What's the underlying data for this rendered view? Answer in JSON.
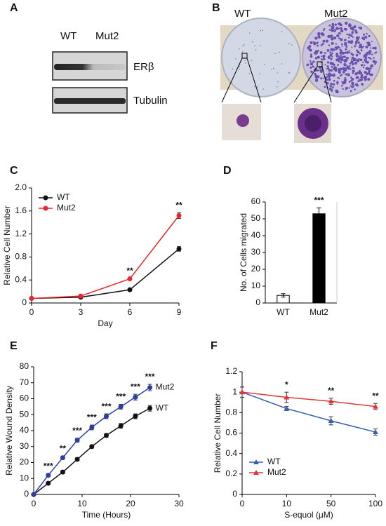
{
  "figure": {
    "panel_labels": [
      "A",
      "B",
      "C",
      "D",
      "E",
      "F"
    ],
    "blot": {
      "lanes": [
        "WT",
        "Mut2"
      ],
      "bands": [
        "ERβ",
        "Tubulin"
      ]
    },
    "plates": {
      "labels": [
        "WT",
        "Mut2"
      ]
    }
  },
  "chart_data": [
    {
      "type": "line",
      "xlabel": "Day",
      "ylabel": "Relative Cell Number",
      "x": [
        0,
        3,
        6,
        9
      ],
      "xlim": [
        0,
        9
      ],
      "xticks": [
        0,
        3,
        6,
        9
      ],
      "ylim": [
        0,
        2
      ],
      "yticks": [
        0,
        0.4,
        0.8,
        1.2,
        1.6,
        {
          "value": 2,
          "label": "2.0"
        }
      ],
      "marker": "circle",
      "legend": "upper left",
      "series": [
        {
          "name": "WT",
          "color": "#111111",
          "values": [
            0.08,
            0.1,
            0.23,
            0.94
          ],
          "errors": [
            0.01,
            0.01,
            0.01,
            0.04
          ]
        },
        {
          "name": "Mut2",
          "color": "#e8262b",
          "values": [
            0.08,
            0.12,
            0.42,
            1.52
          ],
          "errors": [
            0.01,
            0.01,
            0.01,
            0.05
          ]
        }
      ],
      "annotations": [
        {
          "x": 6,
          "text": "**"
        },
        {
          "x": 9,
          "text": "**"
        }
      ]
    },
    {
      "type": "bar",
      "ylabel": "No. of Cells migrated",
      "categories": [
        "WT",
        "Mut2"
      ],
      "values": [
        4.5,
        53
      ],
      "errors": [
        1,
        3.5
      ],
      "colors": [
        "#ffffff",
        "#000000"
      ],
      "ylim": [
        0,
        60
      ],
      "yticks": [
        0,
        10,
        20,
        30,
        40,
        50,
        60
      ],
      "annotations": [
        {
          "category": "Mut2",
          "text": "***"
        }
      ]
    },
    {
      "type": "line",
      "xlabel": "Time (Hours)",
      "ylabel": "Relative Wound Density",
      "x": [
        0,
        3,
        6,
        9,
        12,
        15,
        18,
        21,
        24
      ],
      "xlim": [
        0,
        30
      ],
      "xticks": [
        0,
        10,
        20,
        30
      ],
      "ylim": [
        0,
        80
      ],
      "yticks": [
        0,
        10,
        20,
        30,
        40,
        50,
        60,
        70,
        80
      ],
      "marker": "circle",
      "legend": "end labels",
      "series": [
        {
          "name": "WT",
          "color": "#111111",
          "values": [
            0,
            7,
            14,
            22,
            30,
            37,
            43,
            49,
            54
          ],
          "errors": [
            0.5,
            0.8,
            1,
            1,
            1,
            1.2,
            1.5,
            1.5,
            1.8
          ]
        },
        {
          "name": "Mut2",
          "color": "#2b3fa0",
          "values": [
            0,
            12,
            23,
            34,
            42,
            49,
            55,
            61,
            67
          ],
          "errors": [
            0.5,
            1,
            1,
            1.2,
            1.5,
            1.5,
            1.5,
            1.8,
            2
          ]
        }
      ],
      "annotations": [
        {
          "x": 3,
          "text": "***"
        },
        {
          "x": 6,
          "text": "**"
        },
        {
          "x": 9,
          "text": "***"
        },
        {
          "x": 12,
          "text": "***"
        },
        {
          "x": 15,
          "text": "***"
        },
        {
          "x": 18,
          "text": "***"
        },
        {
          "x": 21,
          "text": "***"
        },
        {
          "x": 24,
          "text": "***"
        }
      ]
    },
    {
      "type": "line",
      "xlabel": "S-equol (μM)",
      "ylabel": "Relative Cell Number",
      "categories": [
        "0",
        "10",
        "50",
        "100"
      ],
      "ylim": [
        0,
        1.2
      ],
      "yticks": [
        0,
        0.2,
        0.4,
        0.6,
        0.8,
        1,
        1.2
      ],
      "marker": "triangle",
      "legend": "lower left",
      "series": [
        {
          "name": "WT",
          "color": "#3a5fb0",
          "values": [
            1,
            0.84,
            0.72,
            0.61
          ],
          "errors": [
            0.05,
            0.02,
            0.04,
            0.03
          ]
        },
        {
          "name": "Mut2",
          "color": "#e0383a",
          "values": [
            1,
            0.95,
            0.91,
            0.86
          ],
          "errors": [
            0.05,
            0.05,
            0.03,
            0.03
          ]
        }
      ],
      "annotations": [
        {
          "category": "10",
          "text": "*"
        },
        {
          "category": "50",
          "text": "**"
        },
        {
          "category": "100",
          "text": "**"
        }
      ]
    }
  ]
}
